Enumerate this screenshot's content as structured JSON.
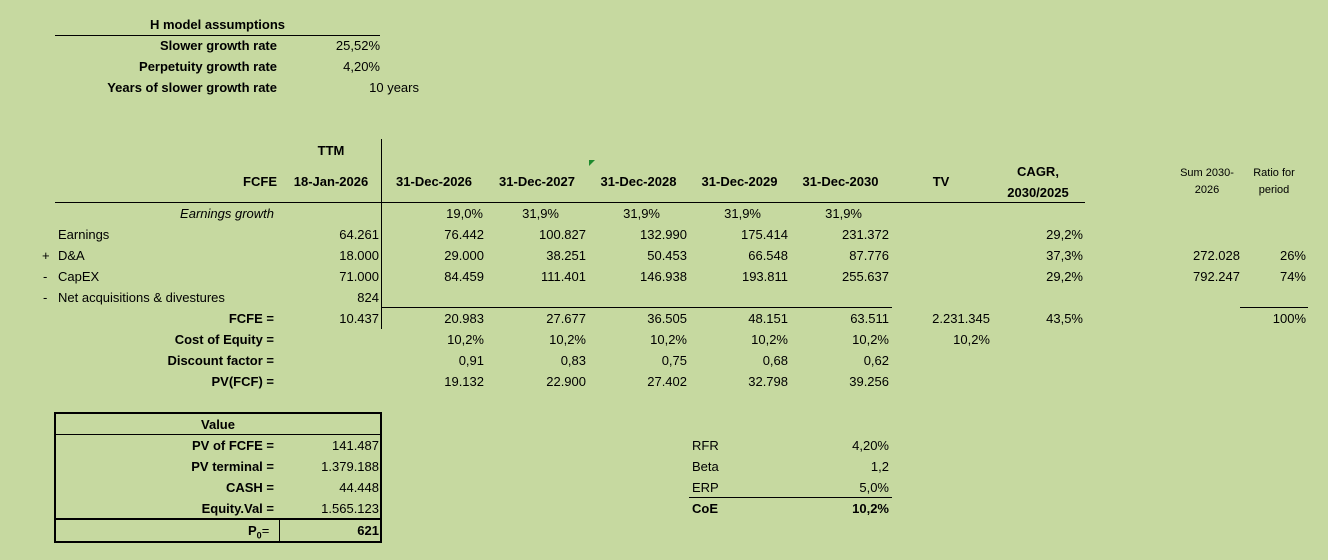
{
  "assumptions": {
    "title": "H model assumptions",
    "rows": [
      {
        "label": "Slower growth rate",
        "value": "25,52%"
      },
      {
        "label": "Perpetuity growth rate",
        "value": "4,20%"
      },
      {
        "label": "Years of slower growth rate",
        "value": "10 years"
      }
    ]
  },
  "header": {
    "ttm": "TTM",
    "fcfe": "FCFE",
    "ttm_date": "18-Jan-2026",
    "years": [
      "31-Dec-2026",
      "31-Dec-2027",
      "31-Dec-2028",
      "31-Dec-2029",
      "31-Dec-2030"
    ],
    "tv": "TV",
    "cagr_1": "CAGR,",
    "cagr_2": "2030/2025",
    "sum_1": "Sum 2030-",
    "sum_2": "2026",
    "ratio_1": "Ratio for",
    "ratio_2": "period"
  },
  "rows": {
    "earnings_growth": {
      "label": "Earnings growth",
      "values": [
        "19,0%",
        "31,9%",
        "31,9%",
        "31,9%",
        "31,9%"
      ]
    },
    "earnings": {
      "label": "Earnings",
      "ttm": "64.261",
      "values": [
        "76.442",
        "100.827",
        "132.990",
        "175.414",
        "231.372"
      ],
      "cagr": "29,2%"
    },
    "da": {
      "sign": "+",
      "label": "D&A",
      "ttm": "18.000",
      "values": [
        "29.000",
        "38.251",
        "50.453",
        "66.548",
        "87.776"
      ],
      "cagr": "37,3%",
      "sum": "272.028",
      "ratio": "26%"
    },
    "capex": {
      "sign": "-",
      "label": "CapEX",
      "ttm": "71.000",
      "values": [
        "84.459",
        "111.401",
        "146.938",
        "193.811",
        "255.637"
      ],
      "cagr": "29,2%",
      "sum": "792.247",
      "ratio": "74%"
    },
    "acq": {
      "sign": "-",
      "label": "Net acquisitions & divestures",
      "ttm": "824"
    },
    "fcfe": {
      "label": "FCFE =",
      "ttm": "10.437",
      "values": [
        "20.983",
        "27.677",
        "36.505",
        "48.151",
        "63.511"
      ],
      "tv": "2.231.345",
      "cagr": "43,5%",
      "ratio": "100%"
    },
    "coe": {
      "label": "Cost of Equity  =",
      "values": [
        "10,2%",
        "10,2%",
        "10,2%",
        "10,2%",
        "10,2%"
      ],
      "tv": "10,2%"
    },
    "df": {
      "label": "Discount factor =",
      "values": [
        "0,91",
        "0,83",
        "0,75",
        "0,68",
        "0,62"
      ]
    },
    "pv": {
      "label": "PV(FCF) =",
      "values": [
        "19.132",
        "22.900",
        "27.402",
        "32.798",
        "39.256"
      ]
    }
  },
  "value_box": {
    "title": "Value",
    "rows": [
      {
        "label": "PV of FCFE =",
        "value": "141.487"
      },
      {
        "label": "PV terminal =",
        "value": "1.379.188"
      },
      {
        "label": "CASH =",
        "value": "44.448"
      },
      {
        "label": "Equity.Val =",
        "value": "1.565.123"
      }
    ],
    "p0_label": "P",
    "p0_sub": "0",
    "p0_eq": "=",
    "p0_value": "621"
  },
  "coe_box": {
    "rows": [
      {
        "label": "RFR",
        "value": "4,20%"
      },
      {
        "label": "Beta",
        "value": "1,2"
      },
      {
        "label": "ERP",
        "value": "5,0%"
      }
    ],
    "total_label": "CoE",
    "total_value": "10,2%"
  }
}
